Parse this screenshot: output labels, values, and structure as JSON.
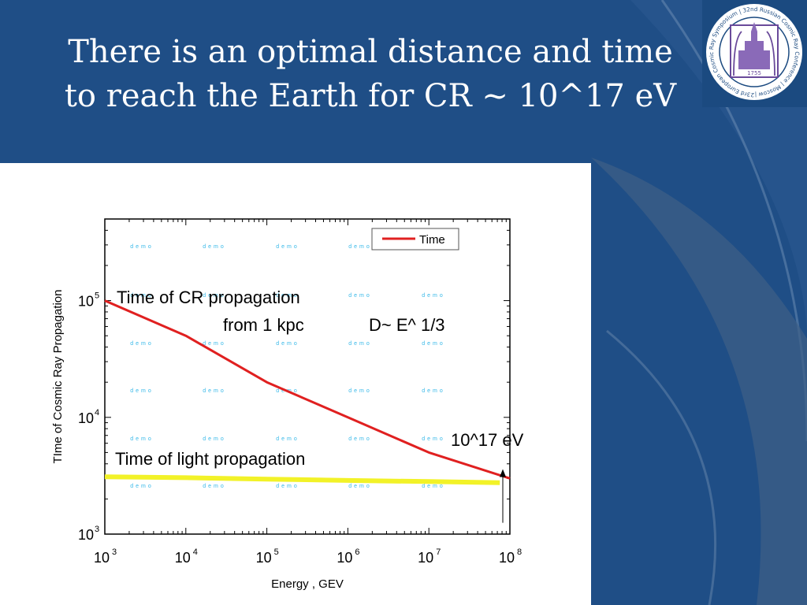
{
  "slide": {
    "title_line1": "There is an optimal distance and time",
    "title_line2": "to reach the Earth for CR ~ 10^17 eV"
  },
  "logo": {
    "ring_text": "23rd European Cosmic Ray Symposium | 32nd Russian Cosmic Ray Conference | Moscow | 2012 |",
    "year": "1755"
  },
  "colors": {
    "background": "#1f4e86",
    "time_series": "#e02020",
    "light_series": "#f2f228",
    "watermark": "#36b8e8"
  },
  "chart_data": {
    "type": "line",
    "xlabel": "Energy , GEV",
    "ylabel": "TIme of Cosmic Ray Propagation",
    "x_scale": "log",
    "y_scale": "log",
    "xlim": [
      1000,
      100000000
    ],
    "ylim": [
      1000,
      500000
    ],
    "x_ticks": [
      {
        "value": 1000,
        "base": "10",
        "exp": "3"
      },
      {
        "value": 10000,
        "base": "10",
        "exp": "4"
      },
      {
        "value": 100000,
        "base": "10",
        "exp": "5"
      },
      {
        "value": 1000000,
        "base": "10",
        "exp": "6"
      },
      {
        "value": 10000000,
        "base": "10",
        "exp": "7"
      },
      {
        "value": 100000000,
        "base": "10",
        "exp": "8"
      }
    ],
    "y_ticks": [
      {
        "value": 1000,
        "base": "10",
        "exp": "3"
      },
      {
        "value": 10000,
        "base": "10",
        "exp": "4"
      },
      {
        "value": 100000,
        "base": "10",
        "exp": "5"
      }
    ],
    "legend": {
      "position": "top-right",
      "entries": [
        "Time"
      ]
    },
    "series": [
      {
        "name": "Time",
        "x": [
          1000,
          10000,
          100000,
          1000000,
          10000000,
          100000000
        ],
        "y": [
          100000,
          50000,
          20000,
          10000,
          5000,
          3000
        ]
      },
      {
        "x": [
          1000,
          10000,
          100000,
          1000000,
          10000000,
          75000000
        ],
        "y": [
          3100,
          3040,
          2960,
          2880,
          2820,
          2760
        ]
      }
    ],
    "annotations": {
      "cr_line1": "Time of CR propagation",
      "cr_line2": "from 1 kpc",
      "diffusion": "D~ E^ 1/3",
      "energy_marker": "10^17 eV",
      "light": "Time of light  propagation"
    },
    "watermark_text": "demo",
    "arrow_tip": {
      "x": 100000000,
      "y": 3600
    },
    "arrow_tail": {
      "x": 100000000,
      "y": 1250
    },
    "grid": false
  }
}
